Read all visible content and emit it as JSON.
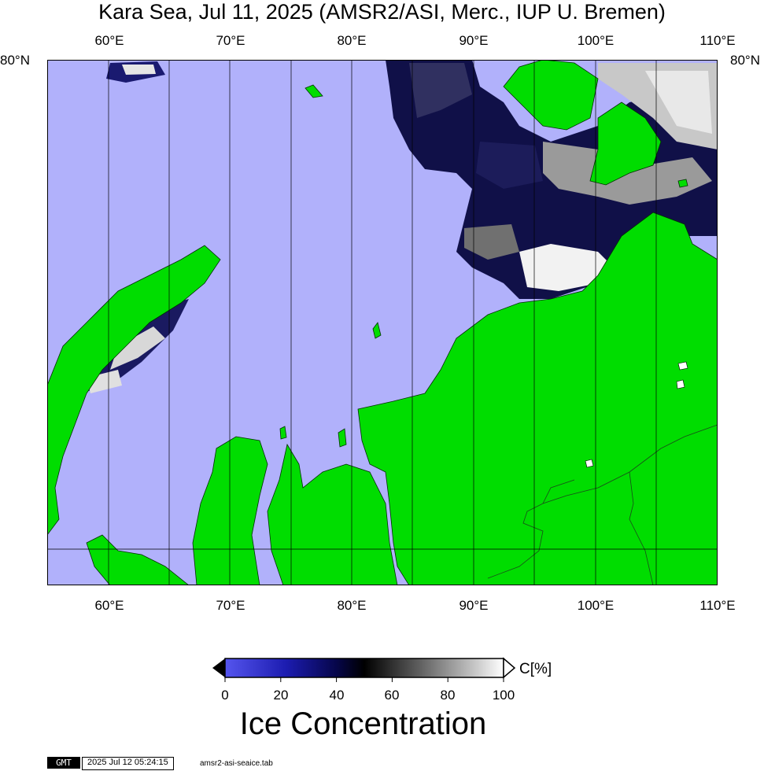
{
  "title": "Kara Sea, Jul 11, 2025 (AMSR2/ASI, Merc., IUP U. Bremen)",
  "map": {
    "lon_ticks_top": [
      "60°E",
      "70°E",
      "80°E",
      "90°E",
      "100°E",
      "110°E"
    ],
    "lon_ticks_bottom": [
      "60°E",
      "70°E",
      "80°E",
      "90°E",
      "100°E",
      "110°E"
    ],
    "lat_tick_left": "80°N",
    "lat_tick_right": "80°N",
    "colors": {
      "open_water": "#b1b1fb",
      "land": "#00dd00",
      "grid": "#000000"
    }
  },
  "colorbar": {
    "labels": [
      "0",
      "20",
      "40",
      "60",
      "80",
      "100"
    ],
    "unit": "C[%]",
    "title": "Ice Concentration"
  },
  "footer": {
    "logo": "GMT",
    "timestamp": "2025 Jul 12 05:24:15",
    "filename": "amsr2-asi-seaice.tab"
  }
}
